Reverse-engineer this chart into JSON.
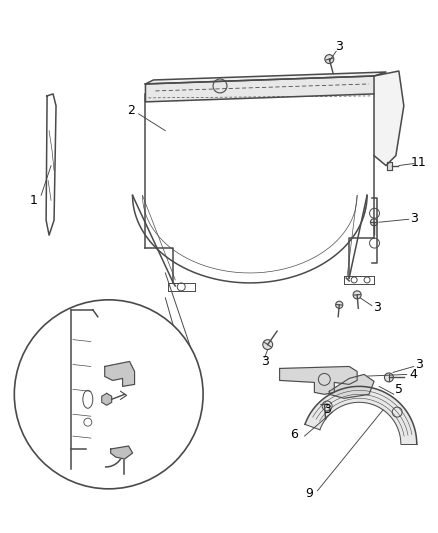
{
  "background_color": "#ffffff",
  "label_color": "#000000",
  "line_color": "#4a4a4a",
  "font_size": 9,
  "lw_main": 1.1,
  "lw_thin": 0.7,
  "lw_label": 0.6
}
